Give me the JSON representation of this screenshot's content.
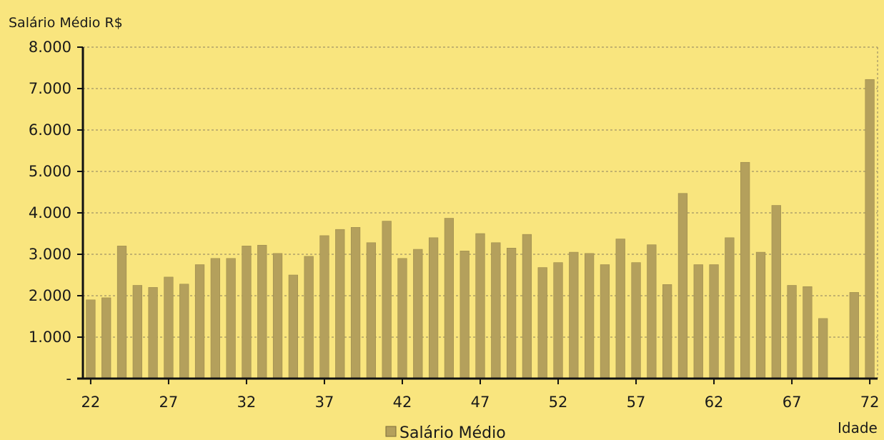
{
  "chart_data": {
    "type": "bar",
    "ylabel": "Salário Médio R$",
    "xlabel": "Idade",
    "ylim": [
      0,
      8000
    ],
    "yticks": [
      0,
      1000,
      2000,
      3000,
      4000,
      5000,
      6000,
      7000,
      8000
    ],
    "ytick_labels": [
      "-",
      "1.000",
      "2.000",
      "3.000",
      "4.000",
      "5.000",
      "6.000",
      "7.000",
      "8.000"
    ],
    "xticks": [
      "22",
      "27",
      "32",
      "37",
      "42",
      "47",
      "52",
      "57",
      "62",
      "67",
      "72"
    ],
    "grid": true,
    "legend_position": "bottom",
    "colors": {
      "background": "#f9e57e",
      "bar": "#b4a05c",
      "grid": "#8a8060",
      "axis": "#111111"
    },
    "categories": [
      "22",
      "23",
      "24",
      "25",
      "26",
      "27",
      "28",
      "29",
      "30",
      "31",
      "32",
      "33",
      "34",
      "35",
      "36",
      "37",
      "38",
      "39",
      "40",
      "41",
      "42",
      "43",
      "44",
      "45",
      "46",
      "47",
      "48",
      "49",
      "50",
      "51",
      "52",
      "53",
      "54",
      "55",
      "56",
      "57",
      "58",
      "59",
      "60",
      "61",
      "62",
      "63",
      "64",
      "65",
      "66",
      "67",
      "68",
      "69",
      "70",
      "71",
      "72"
    ],
    "series": [
      {
        "name": "Salário Médio",
        "values": [
          1900,
          1950,
          3200,
          2250,
          2200,
          2450,
          2280,
          2750,
          2900,
          2900,
          3200,
          3220,
          3020,
          2500,
          2950,
          3450,
          3600,
          3650,
          3280,
          3800,
          2900,
          3120,
          3400,
          3870,
          3080,
          3500,
          3280,
          3150,
          3480,
          2680,
          2800,
          3050,
          3020,
          2750,
          3370,
          2800,
          3230,
          2270,
          4470,
          2750,
          2750,
          3400,
          5220,
          3050,
          4180,
          2250,
          2220,
          1450,
          0,
          2080,
          7220
        ]
      }
    ]
  }
}
